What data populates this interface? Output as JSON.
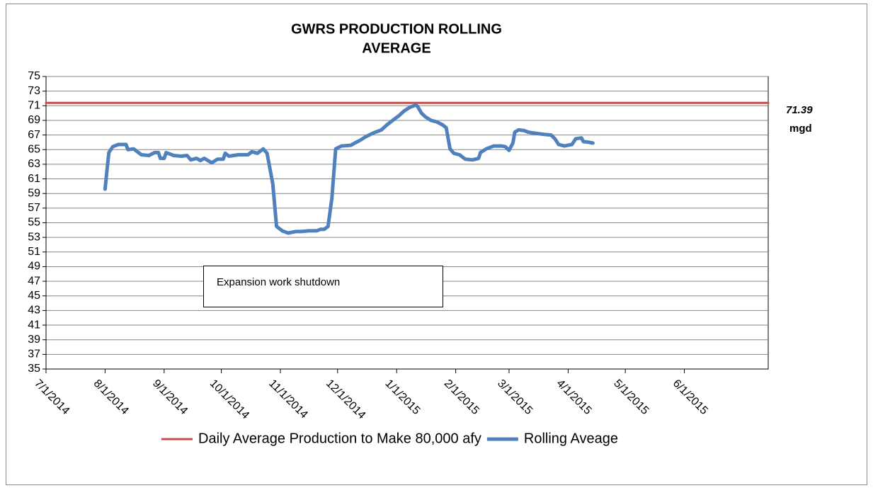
{
  "chart_data": {
    "type": "line",
    "title": [
      "GWRS PRODUCTION ROLLING",
      "AVERAGE"
    ],
    "xlim": [
      "7/1/2014",
      "7/15/2015"
    ],
    "xticks": [
      "7/1/2014",
      "8/1/2014",
      "9/1/2014",
      "10/1/2014",
      "11/1/2014",
      "12/1/2014",
      "1/1/2015",
      "2/1/2015",
      "3/1/2015",
      "4/1/2015",
      "5/1/2015",
      "6/1/2015"
    ],
    "ylim": [
      35,
      75
    ],
    "yticks": [
      35,
      37,
      39,
      41,
      43,
      45,
      47,
      49,
      51,
      53,
      55,
      57,
      59,
      61,
      63,
      65,
      67,
      69,
      71,
      73,
      75
    ],
    "grid": true,
    "legend": "bottom",
    "annotations": [
      "71.39",
      "mgd",
      "Expansion work shutdown"
    ],
    "series": [
      {
        "name": "Daily Average Production to Make 80,000 afy",
        "color": "#c0504d",
        "width": 3,
        "x": [
          "7/1/2014",
          "7/15/2015"
        ],
        "values": [
          71.39,
          71.39
        ]
      },
      {
        "name": "Rolling Aveage",
        "color": "#4f81bd",
        "width": 5,
        "x": [
          "8/1/2014",
          "8/2/2014",
          "8/3/2014",
          "8/5/2014",
          "8/8/2014",
          "8/12/2014",
          "8/13/2014",
          "8/16/2014",
          "8/20/2014",
          "8/24/2014",
          "8/27/2014",
          "8/29/2014",
          "8/30/2014",
          "9/1/2014",
          "9/2/2014",
          "9/6/2014",
          "9/10/2014",
          "9/13/2014",
          "9/15/2014",
          "9/18/2014",
          "9/20/2014",
          "9/22/2014",
          "9/26/2014",
          "9/29/2014",
          "10/2/2014",
          "10/3/2014",
          "10/5/2014",
          "10/10/2014",
          "10/15/2014",
          "10/17/2014",
          "10/20/2014",
          "10/23/2014",
          "10/25/2014",
          "10/28/2014",
          "10/30/2014",
          "11/2/2014",
          "11/5/2014",
          "11/9/2014",
          "11/12/2014",
          "11/16/2014",
          "11/20/2014",
          "11/22/2014",
          "11/24/2014",
          "11/26/2014",
          "11/28/2014",
          "11/30/2014",
          "12/3/2014",
          "12/8/2014",
          "12/10/2014",
          "12/13/2014",
          "12/16/2014",
          "12/20/2014",
          "12/24/2014",
          "12/27/2014",
          "12/30/2014",
          "1/2/2015",
          "1/5/2015",
          "1/8/2015",
          "1/11/2015",
          "1/12/2015",
          "1/14/2015",
          "1/16/2015",
          "1/19/2015",
          "1/22/2015",
          "1/25/2015",
          "1/27/2015",
          "1/29/2015",
          "1/31/2015",
          "2/3/2015",
          "2/6/2015",
          "2/10/2015",
          "2/13/2015",
          "2/14/2015",
          "2/17/2015",
          "2/21/2015",
          "2/25/2015",
          "2/27/2015",
          "3/1/2015",
          "3/3/2015",
          "3/4/2015",
          "3/6/2015",
          "3/9/2015",
          "3/11/2015",
          "3/13/2015",
          "3/19/2015",
          "3/23/2015",
          "3/25/2015",
          "3/27/2015",
          "3/30/2015",
          "4/3/2015",
          "4/5/2015",
          "4/8/2015",
          "4/9/2015",
          "4/12/2015",
          "4/14/2015"
        ],
        "values": [
          59.6,
          62.2,
          64.6,
          65.4,
          65.7,
          65.7,
          65.0,
          65.1,
          64.3,
          64.2,
          64.6,
          64.6,
          63.8,
          63.8,
          64.6,
          64.2,
          64.1,
          64.2,
          63.6,
          63.8,
          63.5,
          63.8,
          63.2,
          63.7,
          63.7,
          64.5,
          64.1,
          64.3,
          64.3,
          64.7,
          64.5,
          65.1,
          64.5,
          60.3,
          54.5,
          53.9,
          53.6,
          53.8,
          53.8,
          53.9,
          53.9,
          54.1,
          54.1,
          54.5,
          58.3,
          65.1,
          65.5,
          65.6,
          65.9,
          66.3,
          66.8,
          67.3,
          67.7,
          68.4,
          69.0,
          69.6,
          70.3,
          70.8,
          71.1,
          70.9,
          70.0,
          69.5,
          69.0,
          68.8,
          68.4,
          68.0,
          65.1,
          64.5,
          64.3,
          63.7,
          63.6,
          63.8,
          64.6,
          65.1,
          65.5,
          65.5,
          65.4,
          64.9,
          65.9,
          67.4,
          67.7,
          67.6,
          67.4,
          67.3,
          67.1,
          67.0,
          66.5,
          65.7,
          65.5,
          65.7,
          66.5,
          66.6,
          66.1,
          66.0,
          65.9
        ]
      }
    ]
  }
}
